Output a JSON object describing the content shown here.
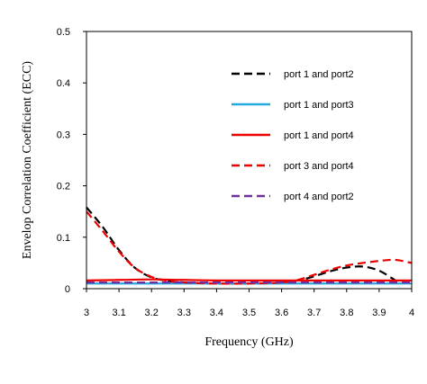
{
  "chart_data": {
    "type": "line",
    "title": "",
    "xlabel": "Frequency (GHz)",
    "ylabel": "Envelop Correlation Coefficient (ECC)",
    "xlim": [
      3,
      4
    ],
    "ylim": [
      0,
      0.5
    ],
    "xticks": [
      "3",
      "3.1",
      "3.2",
      "3.3",
      "3.4",
      "3.5",
      "3.6",
      "3.7",
      "3.8",
      "3.9",
      "4"
    ],
    "yticks": [
      "0",
      "0.1",
      "0.2",
      "0.3",
      "0.4",
      "0.5"
    ],
    "grid": false,
    "legend_position": "top-right",
    "series": [
      {
        "name": "port 1 and port2",
        "color": "#000000",
        "dash": "dashed",
        "x": [
          3.0,
          3.05,
          3.1,
          3.15,
          3.2,
          3.25,
          3.3,
          3.4,
          3.5,
          3.6,
          3.65,
          3.7,
          3.75,
          3.8,
          3.85,
          3.9,
          3.95
        ],
        "y": [
          0.158,
          0.12,
          0.075,
          0.04,
          0.022,
          0.015,
          0.012,
          0.01,
          0.01,
          0.012,
          0.016,
          0.024,
          0.034,
          0.041,
          0.043,
          0.035,
          0.016
        ]
      },
      {
        "name": "port 1 and port3",
        "color": "#22aadd",
        "dash": "solid",
        "x": [
          3.0,
          3.2,
          3.4,
          3.6,
          3.8,
          4.0
        ],
        "y": [
          0.01,
          0.01,
          0.01,
          0.01,
          0.01,
          0.01
        ]
      },
      {
        "name": "port 1 and port4",
        "color": "#ee0000",
        "dash": "solid",
        "x": [
          3.0,
          3.1,
          3.2,
          3.3,
          3.4,
          3.5,
          3.6,
          3.7,
          3.8,
          3.9,
          4.0
        ],
        "y": [
          0.016,
          0.017,
          0.018,
          0.017,
          0.016,
          0.016,
          0.016,
          0.016,
          0.016,
          0.016,
          0.016
        ]
      },
      {
        "name": "port 3 and port4",
        "color": "#ee0000",
        "dash": "dashed",
        "x": [
          3.0,
          3.05,
          3.1,
          3.15,
          3.2,
          3.25,
          3.3,
          3.4,
          3.5,
          3.6,
          3.65,
          3.7,
          3.75,
          3.8,
          3.85,
          3.9,
          3.95,
          4.0
        ],
        "y": [
          0.15,
          0.112,
          0.072,
          0.04,
          0.023,
          0.015,
          0.012,
          0.01,
          0.01,
          0.012,
          0.017,
          0.027,
          0.037,
          0.045,
          0.05,
          0.054,
          0.056,
          0.05
        ]
      },
      {
        "name": "port 4 and port2",
        "color": "#7030a0",
        "dash": "dashed",
        "x": [
          3.0,
          3.2,
          3.4,
          3.6,
          3.8,
          4.0
        ],
        "y": [
          0.012,
          0.012,
          0.012,
          0.012,
          0.012,
          0.012
        ]
      }
    ]
  }
}
